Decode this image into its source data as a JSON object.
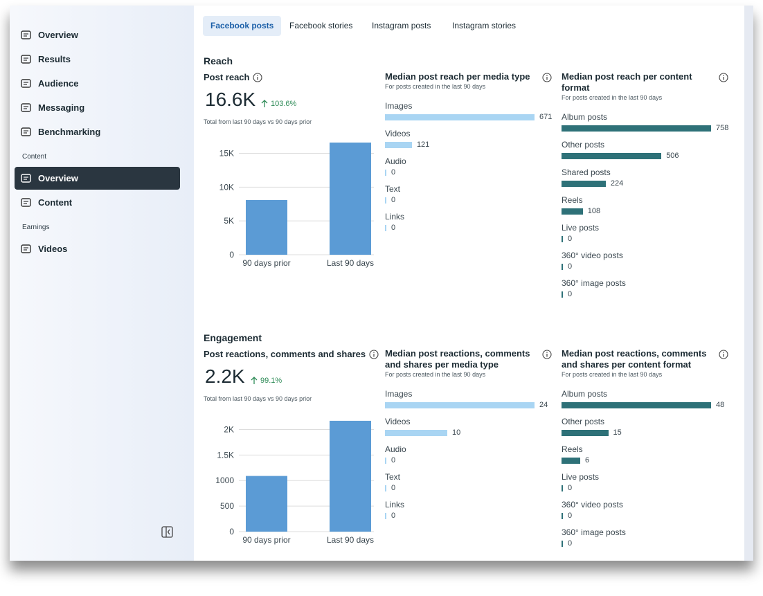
{
  "sidebar": {
    "groups": [
      {
        "items": [
          {
            "label": "Overview"
          },
          {
            "label": "Results"
          },
          {
            "label": "Audience"
          },
          {
            "label": "Messaging"
          },
          {
            "label": "Benchmarking"
          }
        ]
      },
      {
        "title": "Content",
        "items": [
          {
            "label": "Overview",
            "selected": true
          },
          {
            "label": "Content"
          }
        ]
      },
      {
        "title": "Earnings",
        "items": [
          {
            "label": "Videos"
          }
        ]
      }
    ]
  },
  "tabs": [
    {
      "label": "Facebook posts",
      "selected": true
    },
    {
      "label": "Facebook stories"
    },
    {
      "label": "Instagram posts"
    },
    {
      "label": "Instagram stories"
    }
  ],
  "sections": [
    {
      "title": "Reach",
      "total": {
        "title": "Post reach",
        "value": "16.6K",
        "change": "103.6%",
        "note": "Total from last 90 days vs 90 days prior"
      },
      "chart": {
        "type": "bar",
        "categories": [
          "90 days prior",
          "Last 90 days"
        ],
        "values": [
          8100,
          16600
        ],
        "color": "#5b9bd5",
        "ylim": [
          0,
          17000
        ],
        "yticks": [
          0,
          {
            "value": 5000,
            "label": "5K"
          },
          {
            "value": 10000,
            "label": "10K"
          },
          {
            "value": 15000,
            "label": "15K"
          }
        ],
        "grid": true
      },
      "media": {
        "title": "Median post reach per media type",
        "subtitle": "For posts created in the last 90 days",
        "color": "#a9d5f3",
        "items": [
          {
            "label": "Images",
            "value": 671
          },
          {
            "label": "Videos",
            "value": 121
          },
          {
            "label": "Audio",
            "value": 0
          },
          {
            "label": "Text",
            "value": 0
          },
          {
            "label": "Links",
            "value": 0
          }
        ]
      },
      "format": {
        "title": "Median post reach per content format",
        "subtitle": "For posts created in the last 90 days",
        "color": "#2e7178",
        "items": [
          {
            "label": "Album posts",
            "value": 758
          },
          {
            "label": "Other posts",
            "value": 506
          },
          {
            "label": "Shared posts",
            "value": 224
          },
          {
            "label": "Reels",
            "value": 108
          },
          {
            "label": "Live posts",
            "value": 0
          },
          {
            "label": "360° video posts",
            "value": 0
          },
          {
            "label": "360° image posts",
            "value": 0
          }
        ]
      }
    },
    {
      "title": "Engagement",
      "total": {
        "title": "Post reactions, comments and shares",
        "value": "2.2K",
        "change": "99.1%",
        "note": "Total from last 90 days vs 90 days prior"
      },
      "chart": {
        "type": "bar",
        "categories": [
          "90 days prior",
          "Last 90 days"
        ],
        "values": [
          1090,
          2170
        ],
        "color": "#5b9bd5",
        "ylim": [
          0,
          2250
        ],
        "yticks": [
          0,
          500,
          1000,
          {
            "value": 1500,
            "label": "1.5K"
          },
          {
            "value": 2000,
            "label": "2K"
          }
        ],
        "grid": true
      },
      "media": {
        "title": "Median post reactions, comments and shares per media type",
        "subtitle": "For posts created in the last 90 days",
        "color": "#a9d5f3",
        "items": [
          {
            "label": "Images",
            "value": 24
          },
          {
            "label": "Videos",
            "value": 10
          },
          {
            "label": "Audio",
            "value": 0
          },
          {
            "label": "Text",
            "value": 0
          },
          {
            "label": "Links",
            "value": 0
          }
        ]
      },
      "format": {
        "title": "Median post reactions, comments and shares per content format",
        "subtitle": "For posts created in the last 90 days",
        "color": "#2e7178",
        "items": [
          {
            "label": "Album posts",
            "value": 48
          },
          {
            "label": "Other posts",
            "value": 15
          },
          {
            "label": "Reels",
            "value": 6
          },
          {
            "label": "Live posts",
            "value": 0
          },
          {
            "label": "360° video posts",
            "value": 0
          },
          {
            "label": "360° image posts",
            "value": 0
          }
        ]
      }
    }
  ]
}
